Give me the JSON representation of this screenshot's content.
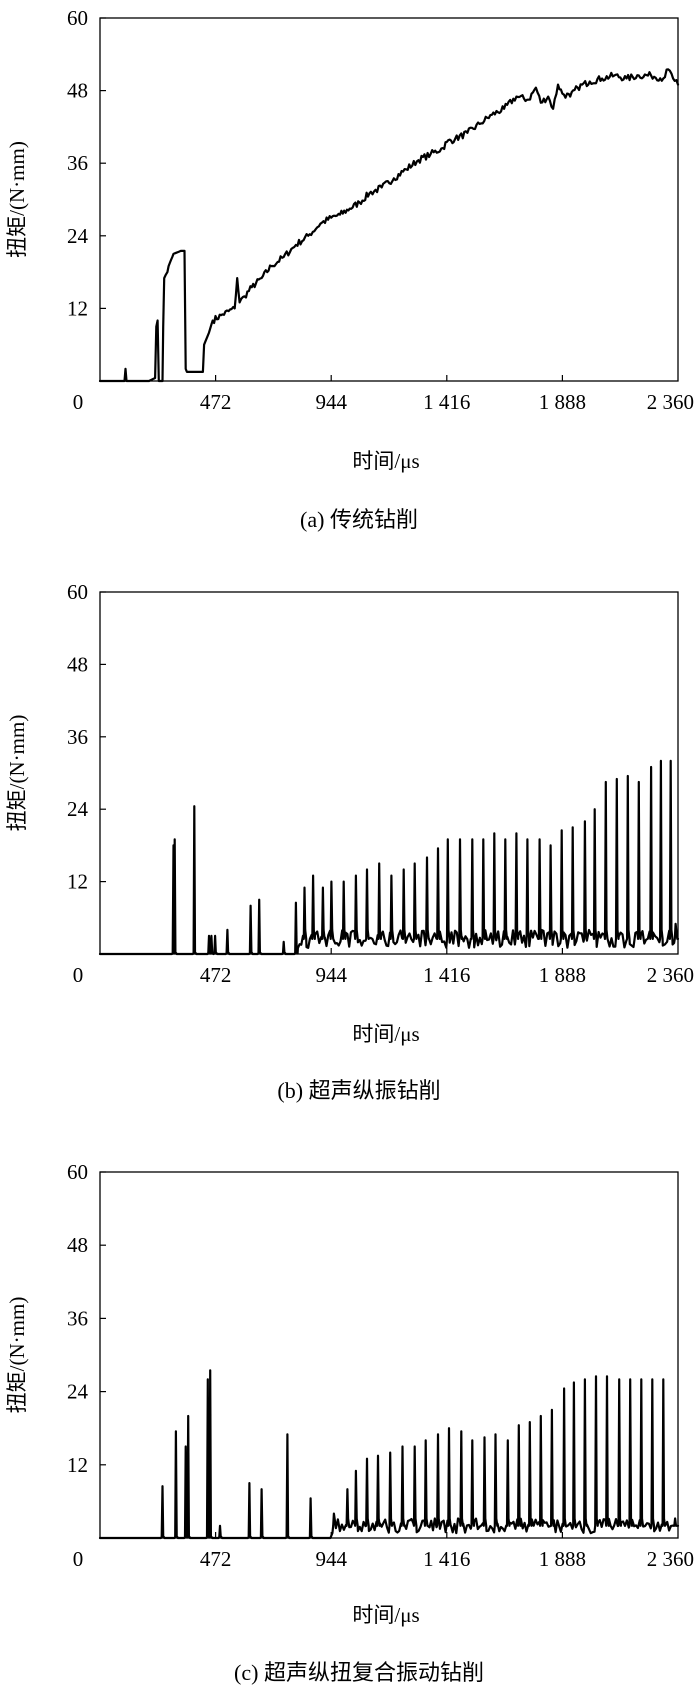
{
  "chart_data": [
    {
      "type": "line",
      "caption": "(a) 传统钻削",
      "xlabel": "时间/μs",
      "ylabel": "扭矩/(N·mm)",
      "xlim": [
        0,
        2360
      ],
      "ylim": [
        0,
        60
      ],
      "x_ticks": [
        {
          "value": 0,
          "label": "0"
        },
        {
          "value": 472,
          "label": "472"
        },
        {
          "value": 944,
          "label": "944"
        },
        {
          "value": 1416,
          "label": "1 416"
        },
        {
          "value": 1888,
          "label": "1 888"
        },
        {
          "value": 2360,
          "label": "2 360"
        }
      ],
      "y_ticks": [
        {
          "value": 12,
          "label": "12"
        },
        {
          "value": 24,
          "label": "24"
        },
        {
          "value": 36,
          "label": "36"
        },
        {
          "value": 48,
          "label": "48"
        },
        {
          "value": 60,
          "label": "60"
        }
      ],
      "series": [
        {
          "x": [
            0,
            100,
            104,
            108,
            112,
            200,
            225,
            230,
            235,
            240,
            255,
            258,
            262,
            268,
            275,
            280,
            290,
            300,
            330,
            345,
            350,
            355,
            420,
            425,
            445,
            460,
            500,
            550,
            560,
            570,
            590,
            620,
            660,
            700,
            750,
            800,
            850,
            900,
            944,
            980,
            1020,
            1060,
            1100,
            1150,
            1200,
            1250,
            1300,
            1350,
            1400,
            1416,
            1450,
            1500,
            1550,
            1600,
            1650,
            1700,
            1750,
            1780,
            1800,
            1830,
            1850,
            1870,
            1888,
            1920,
            1950,
            2000,
            2050,
            2100,
            2150,
            2200,
            2250,
            2300,
            2320,
            2340,
            2360
          ],
          "y": [
            0,
            0,
            2,
            0,
            0,
            0,
            0.5,
            9,
            10,
            0,
            0,
            9,
            17,
            17.5,
            18,
            19,
            20,
            21,
            21.5,
            21.5,
            2,
            1.5,
            1.5,
            6,
            8,
            10,
            11,
            12,
            17,
            13,
            14,
            15.5,
            17,
            19,
            20.5,
            22.5,
            24,
            26,
            27,
            27.5,
            28.5,
            29.5,
            31,
            32,
            33.5,
            35,
            36.5,
            37.5,
            38.5,
            39.5,
            40,
            41,
            42.5,
            44,
            45,
            47,
            46.5,
            48.5,
            46,
            47,
            45,
            49,
            47.5,
            47,
            48.5,
            49.5,
            50,
            50.5,
            50,
            50.5,
            50.5,
            50,
            51.5,
            50,
            49
          ]
        }
      ]
    },
    {
      "type": "line",
      "caption": "(b) 超声纵振钻削",
      "xlabel": "时间/μs",
      "ylabel": "扭矩/(N·mm)",
      "xlim": [
        0,
        2360
      ],
      "ylim": [
        0,
        60
      ],
      "x_ticks": [
        {
          "value": 0,
          "label": "0"
        },
        {
          "value": 472,
          "label": "472"
        },
        {
          "value": 944,
          "label": "944"
        },
        {
          "value": 1416,
          "label": "1 416"
        },
        {
          "value": 1888,
          "label": "1 888"
        },
        {
          "value": 2360,
          "label": "2 360"
        }
      ],
      "y_ticks": [
        {
          "value": 12,
          "label": "12"
        },
        {
          "value": 24,
          "label": "24"
        },
        {
          "value": 36,
          "label": "36"
        },
        {
          "value": 48,
          "label": "48"
        },
        {
          "value": 60,
          "label": "60"
        }
      ],
      "baseline": 0,
      "spikes": {
        "x": [
          300,
          305,
          385,
          445,
          455,
          470,
          520,
          615,
          650,
          750,
          800,
          835,
          870,
          910,
          945,
          995,
          1045,
          1090,
          1140,
          1190,
          1240,
          1285,
          1335,
          1380,
          1420,
          1470,
          1520,
          1565,
          1610,
          1655,
          1700,
          1745,
          1795,
          1840,
          1885,
          1930,
          1980,
          2020,
          2065,
          2110,
          2155,
          2200,
          2250,
          2290,
          2330,
          2350
        ],
        "y": [
          18,
          19,
          24.5,
          3,
          3,
          3,
          4,
          8,
          9,
          2,
          8.5,
          11,
          13,
          11,
          12,
          12,
          13,
          14,
          15,
          13,
          14,
          15,
          16,
          17.5,
          19,
          19,
          19,
          19,
          20,
          19,
          20,
          19,
          19,
          18,
          20.5,
          21,
          22,
          24,
          28.5,
          29,
          29.5,
          28.5,
          31,
          32,
          32,
          5
        ]
      },
      "noise_start": 800,
      "noise_floor": 2.5
    },
    {
      "type": "line",
      "caption": "(c) 超声纵扭复合振动钻削",
      "xlabel": "时间/μs",
      "ylabel": "扭矩/(N·mm)",
      "xlim": [
        0,
        2360
      ],
      "ylim": [
        0,
        60
      ],
      "x_ticks": [
        {
          "value": 0,
          "label": "0"
        },
        {
          "value": 472,
          "label": "472"
        },
        {
          "value": 944,
          "label": "944"
        },
        {
          "value": 1416,
          "label": "1 416"
        },
        {
          "value": 1888,
          "label": "1 888"
        },
        {
          "value": 2360,
          "label": "2 360"
        }
      ],
      "y_ticks": [
        {
          "value": 12,
          "label": "12"
        },
        {
          "value": 24,
          "label": "24"
        },
        {
          "value": 36,
          "label": "36"
        },
        {
          "value": 48,
          "label": "48"
        },
        {
          "value": 60,
          "label": "60"
        }
      ],
      "baseline": 0,
      "spikes": {
        "x": [
          255,
          310,
          350,
          360,
          440,
          450,
          490,
          610,
          660,
          765,
          860,
          955,
          1010,
          1045,
          1090,
          1135,
          1185,
          1235,
          1285,
          1330,
          1380,
          1425,
          1475,
          1520,
          1570,
          1615,
          1665,
          1710,
          1755,
          1800,
          1845,
          1895,
          1935,
          1980,
          2025,
          2070,
          2120,
          2165,
          2210,
          2255,
          2300,
          2345
        ],
        "y": [
          8.5,
          17.5,
          15,
          20,
          26,
          27.5,
          2,
          9,
          8,
          17,
          6.5,
          4,
          8,
          11,
          13,
          13.5,
          14,
          15,
          15,
          16,
          17,
          18,
          17.5,
          16,
          16.5,
          17,
          16,
          18.5,
          19,
          20,
          21,
          24.5,
          25.5,
          26,
          26.5,
          26.5,
          26,
          26,
          26,
          26,
          26,
          2
        ]
      },
      "noise_start": 944,
      "noise_floor": 2
    }
  ]
}
